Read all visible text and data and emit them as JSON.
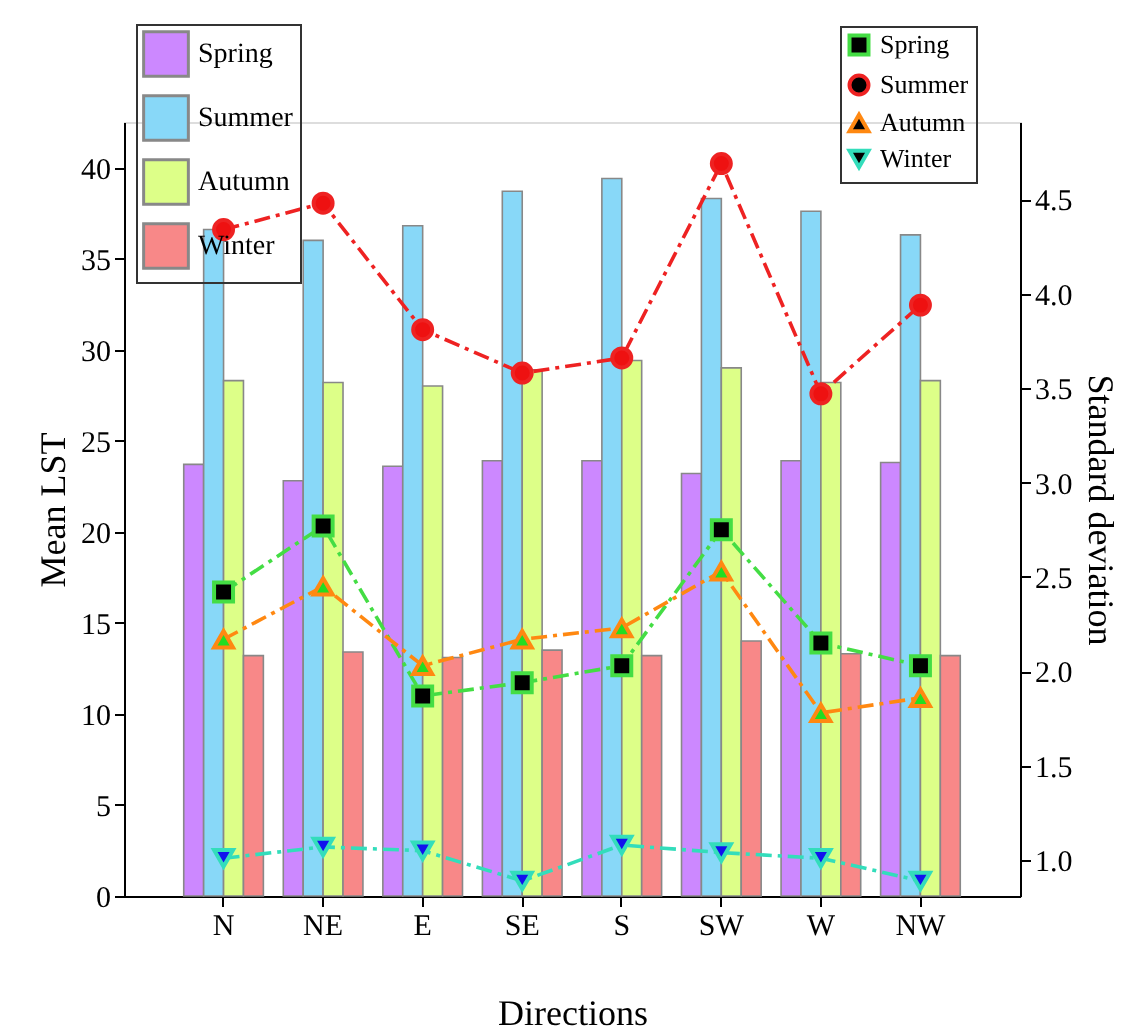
{
  "chart_data": {
    "type": "bar",
    "xlabel": "Directions",
    "ylabel": "Mean LST",
    "y2label": "Standard deviation",
    "categories": [
      "N",
      "NE",
      "E",
      "SE",
      "S",
      "SW",
      "W",
      "NW"
    ],
    "series": [
      {
        "name": "Spring",
        "color": "#cc88ff",
        "values": [
          23.7,
          22.8,
          23.6,
          23.9,
          23.9,
          23.2,
          23.9,
          23.8
        ]
      },
      {
        "name": "Summer",
        "color": "#88d8f8",
        "values": [
          36.6,
          36.0,
          36.8,
          38.7,
          39.4,
          38.3,
          37.6,
          36.3
        ]
      },
      {
        "name": "Autumn",
        "color": "#ddff88",
        "values": [
          28.3,
          28.2,
          28.0,
          28.9,
          29.4,
          29.0,
          28.2,
          28.3
        ]
      },
      {
        "name": "Winter",
        "color": "#f88888",
        "values": [
          13.2,
          13.4,
          13.1,
          13.5,
          13.2,
          14.0,
          13.3,
          13.2
        ]
      },
      {
        "name": "Spring",
        "type": "line",
        "axis": "y2",
        "color": "#44dd44",
        "marker": "square",
        "line_style": "dashed",
        "colors": [
          "#000000",
          "#000000",
          "#000000",
          "#000000",
          "#000000",
          "#000000",
          "#000000",
          "#000000"
        ],
        "values": [
          2.42,
          2.77,
          1.87,
          1.94,
          2.03,
          2.75,
          2.15,
          2.03
        ]
      },
      {
        "name": "Summer",
        "type": "line",
        "axis": "y2",
        "color": "#ee2222",
        "marker": "circle",
        "line_style": "dashed",
        "colors": [
          "#ee1111",
          "#ee1111",
          "#ee1111",
          "#ee1111",
          "#ee1111",
          "#ee1111",
          "#ee1111",
          "#ee1111"
        ],
        "values": [
          4.34,
          4.48,
          3.81,
          3.58,
          3.66,
          4.69,
          3.47,
          3.94
        ]
      },
      {
        "name": "Autumn",
        "type": "line",
        "axis": "y2",
        "color": "#ff8811",
        "marker": "triangle",
        "line_style": "dashed",
        "colors": [
          "#22dd22",
          "#22dd22",
          "#22dd22",
          "#22dd22",
          "#22dd22",
          "#22dd22",
          "#22dd22",
          "#22dd22"
        ],
        "values": [
          2.17,
          2.45,
          2.03,
          2.17,
          2.23,
          2.53,
          1.78,
          1.86
        ]
      },
      {
        "name": "Winter",
        "type": "line",
        "axis": "y2",
        "color": "#33ddbb",
        "marker": "triangle-down",
        "line_style": "dashed",
        "colors": [
          "#1111ee",
          "#1111ee",
          "#1111ee",
          "#1111ee",
          "#1111ee",
          "#1111ee",
          "#1111ee",
          "#1111ee"
        ],
        "values": [
          1.01,
          1.07,
          1.05,
          0.89,
          1.08,
          1.04,
          1.01,
          0.89
        ]
      }
    ],
    "ylim": [
      0,
      42.5
    ],
    "yticks": [
      0,
      5,
      10,
      15,
      20,
      25,
      30,
      35,
      40
    ],
    "y2lim": [
      0.81,
      4.91
    ],
    "y2ticks": [
      {
        "value": 1,
        "label": "1.0"
      },
      1.5,
      {
        "value": 2,
        "label": "2.0"
      },
      2.5,
      {
        "value": 3,
        "label": "3.0"
      },
      3.5,
      {
        "value": 4,
        "label": "4.0"
      },
      4.5
    ],
    "grid": false,
    "legend": "top"
  }
}
